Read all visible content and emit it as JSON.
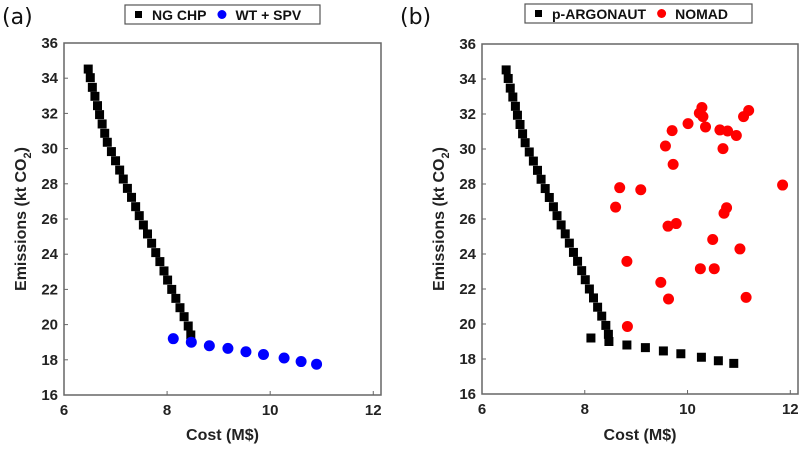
{
  "chart_data": [
    {
      "type": "scatter",
      "panel_label": "(a)",
      "xlabel": "Cost (M$)",
      "ylabel": "Emissions (kt CO",
      "ylabel_sub": "2",
      "ylabel_end": ")",
      "xlim": [
        6,
        12.15
      ],
      "ylim": [
        16,
        36
      ],
      "xticks": [
        6,
        8,
        10,
        12
      ],
      "yticks": [
        16,
        18,
        20,
        22,
        24,
        26,
        28,
        30,
        32,
        34,
        36
      ],
      "grid": false,
      "legend_position": "top-center",
      "series": [
        {
          "name": "NG CHP",
          "marker": "square",
          "color": "#000000",
          "x": [
            6.47,
            6.51,
            6.55,
            6.6,
            6.65,
            6.69,
            6.74,
            6.79,
            6.84,
            6.92,
            7.0,
            7.08,
            7.15,
            7.23,
            7.31,
            7.39,
            7.46,
            7.54,
            7.62,
            7.7,
            7.78,
            7.86,
            7.94,
            8.01,
            8.09,
            8.17,
            8.25,
            8.33,
            8.41,
            8.46
          ],
          "y": [
            34.52,
            34.03,
            33.48,
            32.97,
            32.44,
            31.93,
            31.4,
            30.87,
            30.36,
            29.83,
            29.31,
            28.78,
            28.27,
            27.74,
            27.23,
            26.7,
            26.19,
            25.66,
            25.15,
            24.62,
            24.09,
            23.58,
            23.05,
            22.53,
            22.0,
            21.49,
            20.96,
            20.45,
            19.92,
            19.41
          ]
        },
        {
          "name": "WT + SPV",
          "marker": "circle",
          "color": "#0000ff",
          "x": [
            8.12,
            8.47,
            8.82,
            9.18,
            9.53,
            9.87,
            10.27,
            10.6,
            10.9
          ],
          "y": [
            19.2,
            19.0,
            18.8,
            18.65,
            18.46,
            18.3,
            18.1,
            17.9,
            17.75
          ]
        }
      ]
    },
    {
      "type": "scatter",
      "panel_label": "(b)",
      "xlabel": "Cost (M$)",
      "ylabel": "Emissions (kt CO",
      "ylabel_sub": "2",
      "ylabel_end": ")",
      "xlim": [
        6,
        12.15
      ],
      "ylim": [
        16,
        36
      ],
      "xticks": [
        6,
        8,
        10,
        12
      ],
      "yticks": [
        16,
        18,
        20,
        22,
        24,
        26,
        28,
        30,
        32,
        34,
        36
      ],
      "grid": false,
      "legend_position": "top-center",
      "series": [
        {
          "name": "p-ARGONAUT",
          "marker": "square",
          "color": "#000000",
          "x": [
            6.47,
            6.51,
            6.55,
            6.6,
            6.65,
            6.69,
            6.74,
            6.79,
            6.84,
            6.92,
            7.0,
            7.08,
            7.15,
            7.23,
            7.31,
            7.39,
            7.46,
            7.54,
            7.62,
            7.7,
            7.78,
            7.86,
            7.94,
            8.01,
            8.09,
            8.17,
            8.25,
            8.33,
            8.41,
            8.46,
            8.12,
            8.47,
            8.82,
            9.18,
            9.53,
            9.87,
            10.27,
            10.6,
            10.9
          ],
          "y": [
            34.52,
            34.03,
            33.48,
            32.97,
            32.44,
            31.93,
            31.4,
            30.87,
            30.36,
            29.83,
            29.31,
            28.78,
            28.27,
            27.74,
            27.23,
            26.7,
            26.19,
            25.66,
            25.15,
            24.62,
            24.09,
            23.58,
            23.05,
            22.53,
            22.0,
            21.49,
            20.96,
            20.45,
            19.92,
            19.41,
            19.2,
            19.0,
            18.8,
            18.65,
            18.46,
            18.3,
            18.1,
            17.9,
            17.75
          ]
        },
        {
          "name": "NOMAD",
          "marker": "circle",
          "color": "#ff0000",
          "x": [
            10.28,
            10.23,
            10.3,
            10.01,
            10.35,
            9.7,
            10.63,
            10.78,
            10.95,
            11.09,
            11.19,
            9.57,
            10.69,
            9.72,
            8.68,
            9.09,
            11.85,
            8.6,
            10.76,
            10.71,
            9.62,
            9.78,
            10.49,
            11.02,
            8.82,
            10.25,
            10.52,
            9.48,
            9.63,
            11.14,
            8.83
          ],
          "y": [
            32.37,
            32.05,
            31.85,
            31.45,
            31.26,
            31.05,
            31.09,
            31.03,
            30.77,
            31.85,
            32.2,
            30.17,
            30.02,
            29.12,
            27.79,
            27.67,
            27.94,
            26.68,
            26.64,
            26.33,
            25.59,
            25.74,
            24.83,
            24.29,
            23.58,
            23.16,
            23.16,
            22.38,
            21.43,
            21.52,
            19.86
          ]
        }
      ]
    }
  ]
}
